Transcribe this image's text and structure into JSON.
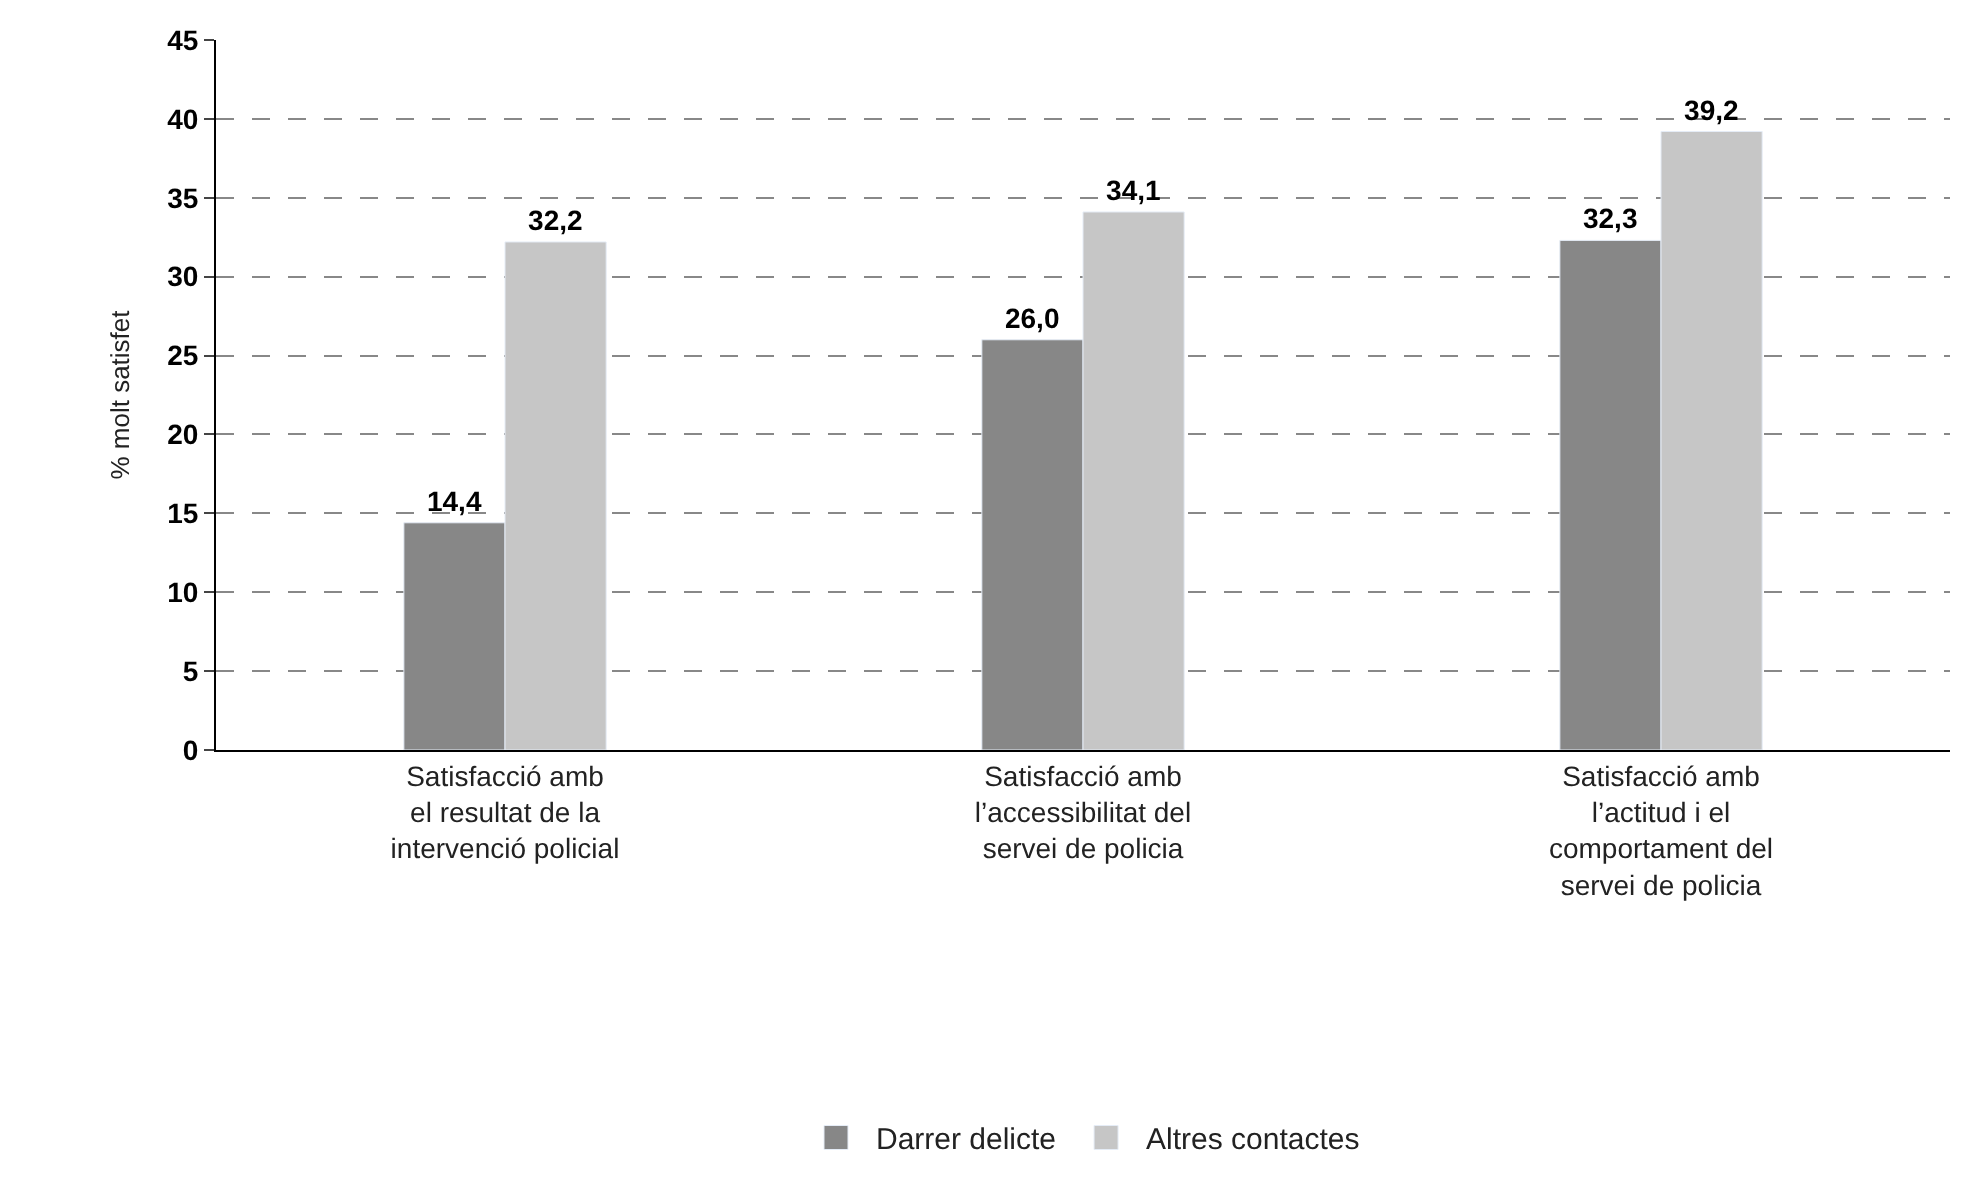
{
  "chart_data": {
    "type": "bar",
    "ylabel": "% molt satisfet",
    "categories": [
      "Satisfacció amb\nel resultat de la\nintervenció policial",
      "Satisfacció amb\nl’accessibilitat del\nservei de policia",
      "Satisfacció amb\nl’actitud i el\ncomportament del\nservei de policia"
    ],
    "series": [
      {
        "name": "Darrer delicte",
        "color": "#878787",
        "values": [
          14.4,
          26.0,
          32.3
        ],
        "value_labels": [
          "14,4",
          "26,0",
          "32,3"
        ]
      },
      {
        "name": "Altres contactes",
        "color": "#c6c6c6",
        "values": [
          32.2,
          34.1,
          39.2
        ],
        "value_labels": [
          "32,2",
          "34,1",
          "39,2"
        ]
      }
    ],
    "ylim": [
      0,
      45
    ],
    "yticks": [
      0,
      5,
      10,
      15,
      20,
      25,
      30,
      35,
      40,
      45
    ],
    "grid": "y",
    "legend": "bottom"
  }
}
